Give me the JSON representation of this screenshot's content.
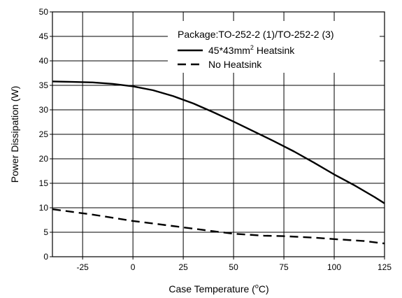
{
  "chart_data": {
    "type": "line",
    "xlabel": {
      "main": "Case Temperature (",
      "sup": "o",
      "post": "C)"
    },
    "ylabel": "Power Dissipation (W)",
    "xlim": [
      -40,
      125
    ],
    "ylim": [
      0,
      50
    ],
    "x_ticks": [
      -25,
      0,
      25,
      50,
      75,
      100,
      125
    ],
    "y_ticks": [
      0,
      5,
      10,
      15,
      20,
      25,
      30,
      35,
      40,
      45,
      50
    ],
    "grid": true,
    "legend": {
      "title": "Package:TO-252-2 (1)/TO-252-2 (3)",
      "placement": "top-right",
      "entries": [
        {
          "main": "45*43mm",
          "sup": "2",
          "post": " Heatsink",
          "style": "solid"
        },
        {
          "main": "No Heatsink",
          "sup": "",
          "post": "",
          "style": "dashed"
        }
      ]
    },
    "series": [
      {
        "style": "solid",
        "points": [
          [
            -40,
            35.8
          ],
          [
            -30,
            35.7
          ],
          [
            -20,
            35.6
          ],
          [
            -10,
            35.3
          ],
          [
            0,
            34.8
          ],
          [
            10,
            34.0
          ],
          [
            20,
            32.8
          ],
          [
            30,
            31.3
          ],
          [
            40,
            29.5
          ],
          [
            50,
            27.6
          ],
          [
            60,
            25.6
          ],
          [
            70,
            23.6
          ],
          [
            80,
            21.5
          ],
          [
            90,
            19.2
          ],
          [
            100,
            16.8
          ],
          [
            110,
            14.6
          ],
          [
            120,
            12.2
          ],
          [
            125,
            10.9
          ]
        ]
      },
      {
        "style": "dashed",
        "points": [
          [
            -40,
            9.7
          ],
          [
            -20,
            8.6
          ],
          [
            0,
            7.3
          ],
          [
            25,
            6.0
          ],
          [
            40,
            5.2
          ],
          [
            50,
            4.7
          ],
          [
            65,
            4.3
          ],
          [
            75,
            4.2
          ],
          [
            90,
            3.9
          ],
          [
            100,
            3.6
          ],
          [
            115,
            3.2
          ],
          [
            125,
            2.7
          ]
        ]
      }
    ]
  }
}
